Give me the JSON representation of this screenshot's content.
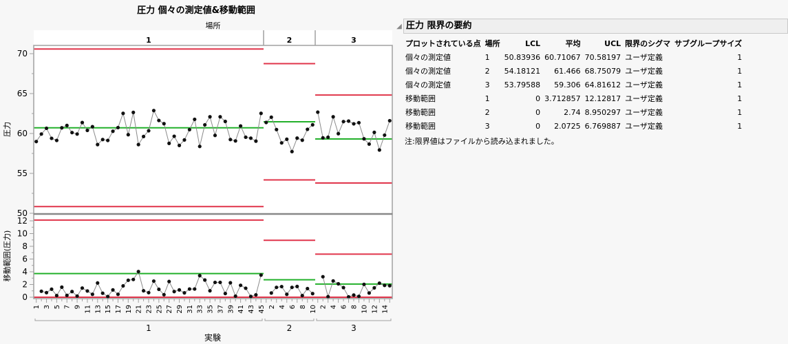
{
  "chart": {
    "title": "圧力  個々の測定値&移動範囲",
    "facet_label": "場所",
    "x_axis_label": "実験",
    "panels": [
      "1",
      "2",
      "3"
    ]
  },
  "chart_data": [
    {
      "type": "line",
      "title": "圧力 個々の測定値",
      "ylabel": "圧力",
      "xlabel": "実験",
      "ylim": [
        50,
        71.2
      ],
      "yticks": [
        50,
        55,
        60,
        65,
        70
      ],
      "grid": false,
      "groups": [
        {
          "name": "1",
          "lcl": 50.83936,
          "mean": 60.71067,
          "ucl": 70.58197,
          "values": [
            58.99,
            59.93,
            60.65,
            59.39,
            59.13,
            60.71,
            61.0,
            60.11,
            59.93,
            61.37,
            60.39,
            60.85,
            58.61,
            59.24,
            59.13,
            60.28,
            60.74,
            62.52,
            59.85,
            62.64,
            58.61,
            59.62,
            60.34,
            62.87,
            61.63,
            61.23,
            58.76,
            59.65,
            58.5,
            59.19,
            60.48,
            61.77,
            58.38,
            61.08,
            62.09,
            59.76,
            62.09,
            61.51,
            59.24,
            59.07,
            60.94,
            59.53,
            59.41,
            59.04,
            62.52
          ]
        },
        {
          "name": "2",
          "lcl": 54.18121,
          "mean": 61.466,
          "ucl": 68.75079,
          "values": [
            61.38,
            62.04,
            60.49,
            58.82,
            59.28,
            57.73,
            59.42,
            59.16,
            60.52,
            61.09
          ]
        },
        {
          "name": "3",
          "lcl": 53.79588,
          "mean": 59.306,
          "ucl": 64.81612,
          "values": [
            62.67,
            59.45,
            59.53,
            62.09,
            59.98,
            61.49,
            61.55,
            61.21,
            61.35,
            59.33,
            58.67,
            60.14,
            57.93,
            59.79,
            61.6
          ]
        }
      ]
    },
    {
      "type": "line",
      "title": "圧力 移動範囲",
      "ylabel": "移動範囲(圧力)",
      "xlabel": "実験",
      "ylim": [
        0,
        12.6
      ],
      "yticks": [
        0,
        2,
        4,
        6,
        8,
        10,
        12
      ],
      "grid": false,
      "groups": [
        {
          "name": "1",
          "lcl": 0,
          "mean": 3.712857,
          "ucl": 12.12817,
          "xtick_labels": [
            "1",
            "3",
            "5",
            "7",
            "9",
            "11",
            "13",
            "15",
            "17",
            "19",
            "21",
            "23",
            "25",
            "27",
            "29",
            "31",
            "33",
            "35",
            "37",
            "39",
            "41",
            "43",
            "45"
          ]
        },
        {
          "name": "2",
          "lcl": 0,
          "mean": 2.74,
          "ucl": 8.950297,
          "xtick_labels": [
            "2",
            "4",
            "6",
            "8",
            "10"
          ]
        },
        {
          "name": "3",
          "lcl": 0,
          "mean": 2.0725,
          "ucl": 6.769887,
          "xtick_labels": [
            "2",
            "4",
            "6",
            "8",
            "10",
            "12",
            "14"
          ]
        }
      ]
    }
  ],
  "report": {
    "title": "圧力 限界の要約",
    "disclosure_icon": "triangle-down-icon",
    "columns": [
      "プロットされている点",
      "場所",
      "LCL",
      "平均",
      "UCL",
      "限界のシグマ",
      "サブグループサイズ"
    ],
    "rows": [
      [
        "個々の測定値",
        "1",
        "50.83936",
        "60.71067",
        "70.58197",
        "ユーザ定義",
        "1"
      ],
      [
        "個々の測定値",
        "2",
        "54.18121",
        "61.466",
        "68.75079",
        "ユーザ定義",
        "1"
      ],
      [
        "個々の測定値",
        "3",
        "53.79588",
        "59.306",
        "64.81612",
        "ユーザ定義",
        "1"
      ],
      [
        "移動範囲",
        "1",
        "0",
        "3.712857",
        "12.12817",
        "ユーザ定義",
        "1"
      ],
      [
        "移動範囲",
        "2",
        "0",
        "2.74",
        "8.950297",
        "ユーザ定義",
        "1"
      ],
      [
        "移動範囲",
        "3",
        "0",
        "2.0725",
        "6.769887",
        "ユーザ定義",
        "1"
      ]
    ],
    "note": "注:限界値はファイルから読み込まれました。"
  },
  "colors": {
    "limit": "#e0344a",
    "center": "#22b02a",
    "point": "#111111",
    "connector": "#8a8a8a",
    "frame": "#a0a0a0"
  }
}
